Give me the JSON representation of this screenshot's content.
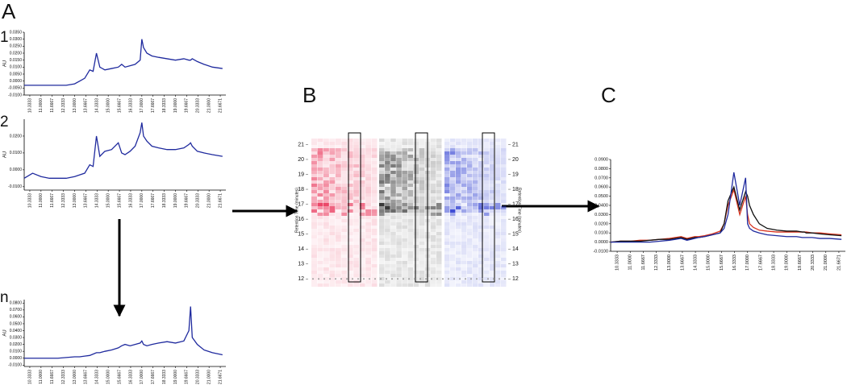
{
  "panel_labels": {
    "a": "A",
    "b": "B",
    "c": "C",
    "a1": "1",
    "a2": "2",
    "an": "n"
  },
  "chart_data": [
    {
      "type": "line",
      "ylabel": "AU",
      "color": "#1f2a9e",
      "x": [
        10,
        10.5,
        11,
        11.5,
        12,
        12.5,
        13,
        13.3,
        13.6,
        13.9,
        14.1,
        14.3,
        14.5,
        14.8,
        15.2,
        15.6,
        15.8,
        16.0,
        16.3,
        16.6,
        16.9,
        17.0,
        17.1,
        17.3,
        17.6,
        18.0,
        18.5,
        19.0,
        19.5,
        19.8,
        19.9,
        20.0,
        20.3,
        20.7,
        21.2,
        21.8
      ],
      "values": [
        -0.003,
        -0.003,
        -0.003,
        -0.003,
        -0.003,
        -0.003,
        -0.002,
        0.0,
        0.002,
        0.008,
        0.007,
        0.02,
        0.01,
        0.008,
        0.009,
        0.01,
        0.012,
        0.01,
        0.011,
        0.012,
        0.015,
        0.03,
        0.024,
        0.02,
        0.018,
        0.017,
        0.016,
        0.015,
        0.016,
        0.015,
        0.015,
        0.016,
        0.014,
        0.012,
        0.01,
        0.009
      ],
      "xlim": [
        10,
        22
      ],
      "xticks": [
        10.3333,
        {
          "value": 11,
          "label": "11.0000"
        },
        11.6667,
        12.3333,
        {
          "value": 13,
          "label": "13.0000"
        },
        13.6667,
        14.3333,
        {
          "value": 15,
          "label": "15.0000"
        },
        15.6667,
        16.3333,
        {
          "value": 17,
          "label": "17.0000"
        },
        17.6667,
        18.3333,
        {
          "value": 19,
          "label": "19.0000"
        },
        19.6667,
        20.3333,
        {
          "value": 21,
          "label": "21.0000"
        },
        21.6671
      ],
      "ylim": [
        -0.01,
        0.035
      ],
      "yticks": [
        {
          "value": -0.01,
          "label": "-0.0100"
        },
        {
          "value": -0.005,
          "label": "-0.0050"
        },
        {
          "value": 0,
          "label": "0.0000"
        },
        {
          "value": 0.005,
          "label": "0.0050"
        },
        {
          "value": 0.01,
          "label": "0.0100"
        },
        {
          "value": 0.015,
          "label": "0.0150"
        },
        {
          "value": 0.02,
          "label": "0.0200"
        },
        {
          "value": 0.025,
          "label": "0.0250"
        },
        {
          "value": 0.03,
          "label": "0.0300"
        },
        {
          "value": 0.035,
          "label": "0.0350"
        }
      ]
    },
    {
      "type": "line",
      "ylabel": "AU",
      "color": "#1f2a9e",
      "x": [
        10,
        10.5,
        11,
        11.5,
        12,
        12.5,
        13,
        13.3,
        13.6,
        13.9,
        14.1,
        14.3,
        14.5,
        14.8,
        15.2,
        15.6,
        15.8,
        16.0,
        16.3,
        16.6,
        16.9,
        17.0,
        17.1,
        17.3,
        17.6,
        18.0,
        18.5,
        19.0,
        19.5,
        19.8,
        19.9,
        20.0,
        20.3,
        20.7,
        21.2,
        21.8
      ],
      "values": [
        -0.005,
        -0.002,
        -0.004,
        -0.005,
        -0.005,
        -0.005,
        -0.004,
        -0.003,
        -0.002,
        0.003,
        0.002,
        0.02,
        0.008,
        0.011,
        0.012,
        0.016,
        0.01,
        0.009,
        0.011,
        0.014,
        0.022,
        0.028,
        0.02,
        0.017,
        0.014,
        0.013,
        0.012,
        0.012,
        0.013,
        0.015,
        0.016,
        0.014,
        0.011,
        0.01,
        0.009,
        0.008
      ],
      "xlim": [
        10,
        22
      ],
      "xticks": [
        10.3333,
        {
          "value": 11,
          "label": "11.0000"
        },
        11.6667,
        12.3333,
        {
          "value": 13,
          "label": "13.0000"
        },
        13.6667,
        14.3333,
        {
          "value": 15,
          "label": "15.0000"
        },
        15.6667,
        16.3333,
        {
          "value": 17,
          "label": "17.0000"
        },
        17.6667,
        18.3333,
        {
          "value": 19,
          "label": "19.0000"
        },
        19.6667,
        20.3333,
        {
          "value": 21,
          "label": "21.0000"
        },
        21.6671
      ],
      "ylim": [
        -0.012,
        0.03
      ],
      "yticks": [
        {
          "value": -0.01,
          "label": "-0.0100"
        },
        {
          "value": 0,
          "label": "0.0000"
        },
        {
          "value": 0.01,
          "label": "0.0100"
        },
        {
          "value": 0.02,
          "label": "0.0200"
        }
      ]
    },
    {
      "type": "line",
      "ylabel": "AU",
      "color": "#1f2a9e",
      "x": [
        10,
        10.5,
        11,
        11.5,
        12,
        12.5,
        13,
        13.3,
        13.6,
        13.9,
        14.1,
        14.3,
        14.5,
        14.8,
        15.2,
        15.6,
        15.8,
        16.0,
        16.3,
        16.6,
        16.9,
        17.0,
        17.1,
        17.3,
        17.6,
        18.0,
        18.5,
        19.0,
        19.5,
        19.8,
        19.9,
        20.0,
        20.3,
        20.7,
        21.2,
        21.8
      ],
      "values": [
        0,
        0,
        0,
        0,
        0,
        0.001,
        0.002,
        0.002,
        0.003,
        0.004,
        0.006,
        0.008,
        0.008,
        0.01,
        0.012,
        0.015,
        0.018,
        0.02,
        0.018,
        0.02,
        0.022,
        0.025,
        0.02,
        0.018,
        0.02,
        0.022,
        0.024,
        0.022,
        0.025,
        0.04,
        0.075,
        0.03,
        0.02,
        0.012,
        0.008,
        0.005
      ],
      "xlim": [
        10,
        22
      ],
      "xticks": [
        10.3333,
        {
          "value": 11,
          "label": "11.0000"
        },
        11.6667,
        12.3333,
        {
          "value": 13,
          "label": "13.0000"
        },
        13.6667,
        14.3333,
        {
          "value": 15,
          "label": "15.0000"
        },
        15.6667,
        16.3333,
        {
          "value": 17,
          "label": "17.0000"
        },
        17.6667,
        18.3333,
        {
          "value": 19,
          "label": "19.0000"
        },
        19.6667,
        20.3333,
        {
          "value": 21,
          "label": "21.0000"
        },
        21.6671
      ],
      "ylim": [
        -0.012,
        0.085
      ],
      "yticks": [
        {
          "value": -0.01,
          "label": "-0.0100"
        },
        {
          "value": 0,
          "label": "0.0000"
        },
        {
          "value": 0.01,
          "label": "0.0100"
        },
        {
          "value": 0.02,
          "label": "0.0200"
        },
        {
          "value": 0.03,
          "label": "0.0300"
        },
        {
          "value": 0.04,
          "label": "0.0400"
        },
        {
          "value": 0.05,
          "label": "0.0500"
        },
        {
          "value": 0.06,
          "label": "0.0600"
        },
        {
          "value": 0.07,
          "label": "0.0700"
        },
        {
          "value": 0.08,
          "label": "0.0800"
        }
      ]
    },
    {
      "type": "heatmap",
      "ylabel": "Retention Time (minutes)",
      "ylim": [
        11.8,
        21.4
      ],
      "yticks": [
        12,
        13,
        14,
        15,
        16,
        17,
        18,
        19,
        20,
        21
      ]
    },
    {
      "type": "line",
      "ylabel": "AU",
      "x": [
        10,
        10.5,
        11,
        11.5,
        12,
        12.5,
        13,
        13.3,
        13.6,
        13.9,
        14.1,
        14.3,
        14.5,
        14.8,
        15.2,
        15.6,
        15.8,
        16.0,
        16.3,
        16.6,
        16.9,
        17.0,
        17.1,
        17.3,
        17.6,
        18.0,
        18.5,
        19.0,
        19.5,
        19.8,
        19.9,
        20.0,
        20.3,
        20.7,
        21.2,
        21.8
      ],
      "series": [
        {
          "color": "#d8341f",
          "values": [
            0,
            0.001,
            0.001,
            0.002,
            0.002,
            0.003,
            0.004,
            0.005,
            0.006,
            0.004,
            0.005,
            0.006,
            0.006,
            0.007,
            0.009,
            0.012,
            0.02,
            0.04,
            0.057,
            0.03,
            0.05,
            0.03,
            0.02,
            0.016,
            0.013,
            0.012,
            0.011,
            0.011,
            0.011,
            0.011,
            0.011,
            0.011,
            0.01,
            0.01,
            0.009,
            0.008
          ]
        },
        {
          "color": "#111111",
          "values": [
            0,
            0.001,
            0.001,
            0.001,
            0.002,
            0.003,
            0.003,
            0.004,
            0.005,
            0.003,
            0.004,
            0.005,
            0.005,
            0.006,
            0.008,
            0.01,
            0.02,
            0.045,
            0.06,
            0.035,
            0.055,
            0.05,
            0.04,
            0.03,
            0.02,
            0.015,
            0.013,
            0.012,
            0.012,
            0.011,
            0.011,
            0.01,
            0.01,
            0.009,
            0.008,
            0.007
          ]
        },
        {
          "color": "#1f2a9e",
          "values": [
            0,
            0,
            0,
            0,
            0,
            0.001,
            0.002,
            0.003,
            0.004,
            0.002,
            0.003,
            0.004,
            0.005,
            0.006,
            0.008,
            0.01,
            0.015,
            0.03,
            0.076,
            0.04,
            0.07,
            0.02,
            0.015,
            0.012,
            0.01,
            0.008,
            0.007,
            0.006,
            0.006,
            0.005,
            0.005,
            0.005,
            0.005,
            0.004,
            0.004,
            0.003
          ]
        }
      ],
      "xlim": [
        10,
        22
      ],
      "xticks": [
        10.3333,
        {
          "value": 11,
          "label": "11.0000"
        },
        11.6667,
        12.3333,
        {
          "value": 13,
          "label": "13.0000"
        },
        13.6667,
        14.3333,
        {
          "value": 15,
          "label": "15.0000"
        },
        15.6667,
        16.3333,
        {
          "value": 17,
          "label": "17.0000"
        },
        17.6667,
        18.3333,
        {
          "value": 19,
          "label": "19.0000"
        },
        19.6667,
        20.3333,
        {
          "value": 21,
          "label": "21.0000"
        },
        21.6671
      ],
      "ylim": [
        -0.01,
        0.09
      ],
      "yticks": [
        {
          "value": -0.01,
          "label": "-0.0100"
        },
        {
          "value": 0,
          "label": "0.0000"
        },
        {
          "value": 0.01,
          "label": "0.0100"
        },
        {
          "value": 0.02,
          "label": "0.0200"
        },
        {
          "value": 0.03,
          "label": "0.0300"
        },
        {
          "value": 0.04,
          "label": "0.0400"
        },
        {
          "value": 0.05,
          "label": "0.0500"
        },
        {
          "value": 0.06,
          "label": "0.0600"
        },
        {
          "value": 0.07,
          "label": "0.0700"
        },
        {
          "value": 0.08,
          "label": "0.0800"
        },
        {
          "value": 0.09,
          "label": "0.0900"
        }
      ]
    }
  ]
}
